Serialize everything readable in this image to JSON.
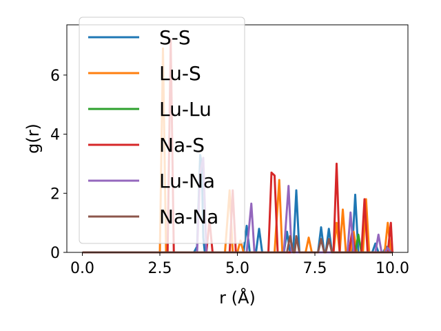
{
  "chart_data": {
    "type": "line",
    "title": "",
    "xlabel": "r (Å)",
    "ylabel": "g(r)",
    "xlim": [
      -0.5,
      10.5
    ],
    "ylim": [
      0,
      7.7
    ],
    "xticks": [
      0.0,
      2.5,
      5.0,
      7.5,
      10.0
    ],
    "xtick_labels": [
      "0.0",
      "2.5",
      "5.0",
      "7.5",
      "10.0"
    ],
    "yticks": [
      0,
      2,
      4,
      6
    ],
    "ytick_labels": [
      "0",
      "2",
      "4",
      "6"
    ],
    "grid": false,
    "legend_position": "top-left",
    "series": [
      {
        "name": "S-S",
        "color": "#1f77b4",
        "points": [
          [
            0,
            0
          ],
          [
            3.6,
            0
          ],
          [
            3.7,
            0.2
          ],
          [
            3.8,
            3.3
          ],
          [
            3.85,
            3.0
          ],
          [
            3.9,
            0.5
          ],
          [
            3.95,
            0
          ],
          [
            5.2,
            0
          ],
          [
            5.3,
            0.9
          ],
          [
            5.4,
            0
          ],
          [
            5.6,
            0
          ],
          [
            5.7,
            0.8
          ],
          [
            5.8,
            0
          ],
          [
            6.5,
            0
          ],
          [
            6.6,
            0.7
          ],
          [
            6.7,
            0
          ],
          [
            6.8,
            0
          ],
          [
            6.9,
            2.1
          ],
          [
            7.0,
            0
          ],
          [
            7.6,
            0
          ],
          [
            7.7,
            0.85
          ],
          [
            7.8,
            0
          ],
          [
            7.85,
            0
          ],
          [
            7.95,
            0.8
          ],
          [
            8.05,
            0
          ],
          [
            8.7,
            0
          ],
          [
            8.8,
            1.95
          ],
          [
            8.9,
            0
          ],
          [
            9.35,
            0
          ],
          [
            9.45,
            0.3
          ],
          [
            9.55,
            0
          ],
          [
            9.7,
            0
          ],
          [
            9.8,
            0.2
          ],
          [
            9.9,
            0
          ],
          [
            10.0,
            0
          ]
        ]
      },
      {
        "name": "Lu-S",
        "color": "#ff7f0e",
        "points": [
          [
            0,
            0
          ],
          [
            2.5,
            0
          ],
          [
            2.6,
            6.9
          ],
          [
            2.7,
            0
          ],
          [
            4.6,
            0
          ],
          [
            4.75,
            2.1
          ],
          [
            4.85,
            0
          ],
          [
            5.0,
            0
          ],
          [
            5.1,
            0.4
          ],
          [
            5.2,
            0
          ],
          [
            6.2,
            0
          ],
          [
            6.35,
            2.45
          ],
          [
            6.45,
            0
          ],
          [
            7.2,
            0
          ],
          [
            7.3,
            0.5
          ],
          [
            7.4,
            0
          ],
          [
            8.1,
            0
          ],
          [
            8.2,
            1.0
          ],
          [
            8.3,
            0
          ],
          [
            8.4,
            1.45
          ],
          [
            8.5,
            0
          ],
          [
            8.65,
            0
          ],
          [
            8.75,
            0.7
          ],
          [
            8.85,
            0
          ],
          [
            9.05,
            0
          ],
          [
            9.15,
            1.8
          ],
          [
            9.25,
            0
          ],
          [
            9.75,
            0
          ],
          [
            9.85,
            1.0
          ],
          [
            9.95,
            0
          ],
          [
            10.0,
            0
          ]
        ]
      },
      {
        "name": "Lu-Lu",
        "color": "#2ca02c",
        "points": [
          [
            0,
            0
          ],
          [
            8.8,
            0
          ],
          [
            8.9,
            0.6
          ],
          [
            9.0,
            0
          ],
          [
            10.0,
            0
          ]
        ]
      },
      {
        "name": "Na-S",
        "color": "#d62728",
        "points": [
          [
            0,
            0
          ],
          [
            2.75,
            0
          ],
          [
            2.85,
            7.2
          ],
          [
            2.95,
            0
          ],
          [
            4.0,
            0
          ],
          [
            4.1,
            1.1
          ],
          [
            4.2,
            0
          ],
          [
            4.75,
            0
          ],
          [
            4.85,
            2.1
          ],
          [
            4.95,
            0
          ],
          [
            6.0,
            0
          ],
          [
            6.1,
            2.7
          ],
          [
            6.2,
            2.6
          ],
          [
            6.3,
            0
          ],
          [
            8.1,
            0
          ],
          [
            8.2,
            3.0
          ],
          [
            8.3,
            0
          ],
          [
            8.6,
            0
          ],
          [
            8.7,
            0.7
          ],
          [
            8.8,
            0
          ],
          [
            9.0,
            0
          ],
          [
            9.1,
            1.8
          ],
          [
            9.2,
            0
          ],
          [
            9.85,
            0
          ],
          [
            9.95,
            1.0
          ],
          [
            10.0,
            0
          ]
        ]
      },
      {
        "name": "Lu-Na",
        "color": "#9467bd",
        "points": [
          [
            0,
            0
          ],
          [
            3.7,
            0
          ],
          [
            3.8,
            2.7
          ],
          [
            3.9,
            3.2
          ],
          [
            4.0,
            0
          ],
          [
            5.3,
            0
          ],
          [
            5.45,
            1.65
          ],
          [
            5.55,
            0
          ],
          [
            6.5,
            0
          ],
          [
            6.65,
            2.25
          ],
          [
            6.75,
            0
          ],
          [
            8.55,
            0
          ],
          [
            8.65,
            1.35
          ],
          [
            8.75,
            0
          ],
          [
            9.45,
            0
          ],
          [
            9.55,
            0.6
          ],
          [
            9.65,
            0
          ],
          [
            9.75,
            0
          ],
          [
            9.85,
            0.15
          ],
          [
            9.95,
            0
          ],
          [
            10.0,
            0
          ]
        ]
      },
      {
        "name": "Na-Na",
        "color": "#8c564b",
        "points": [
          [
            0,
            0
          ],
          [
            6.6,
            0
          ],
          [
            6.7,
            0.55
          ],
          [
            6.8,
            0
          ],
          [
            6.85,
            0
          ],
          [
            6.9,
            0.55
          ],
          [
            7.0,
            0
          ],
          [
            7.6,
            0
          ],
          [
            7.7,
            0.45
          ],
          [
            7.8,
            0
          ],
          [
            7.85,
            0
          ],
          [
            7.95,
            0.45
          ],
          [
            8.05,
            0
          ],
          [
            10.0,
            0
          ]
        ]
      }
    ]
  }
}
